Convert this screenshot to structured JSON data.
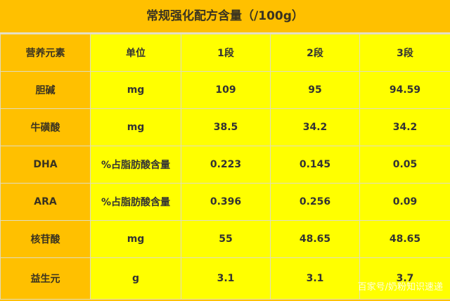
{
  "title": "常规强化配方含量（/100g）",
  "headers": [
    "营养元素",
    "单位",
    "1段",
    "2段",
    "3段"
  ],
  "rows": [
    [
      "胆碱",
      "mg",
      "109",
      "95",
      "94.59"
    ],
    [
      "牛磺酸",
      "mg",
      "38.5",
      "34.2",
      "34.2"
    ],
    [
      "DHA",
      "%占脂肪酸含量",
      "0.223",
      "0.145",
      "0.05"
    ],
    [
      "ARA",
      "%占脂肪酸含量",
      "0.396",
      "0.256",
      "0.09"
    ],
    [
      "核苷酸",
      "mg",
      "55",
      "48.65",
      "48.65"
    ],
    [
      "益生元",
      "g",
      "3.1",
      "3.1",
      "3.7"
    ]
  ],
  "watermark": "百家号/奶粉知识速递",
  "colors": {
    "header_orange": "#FFC000",
    "cell_yellow": "#FFFF00"
  }
}
